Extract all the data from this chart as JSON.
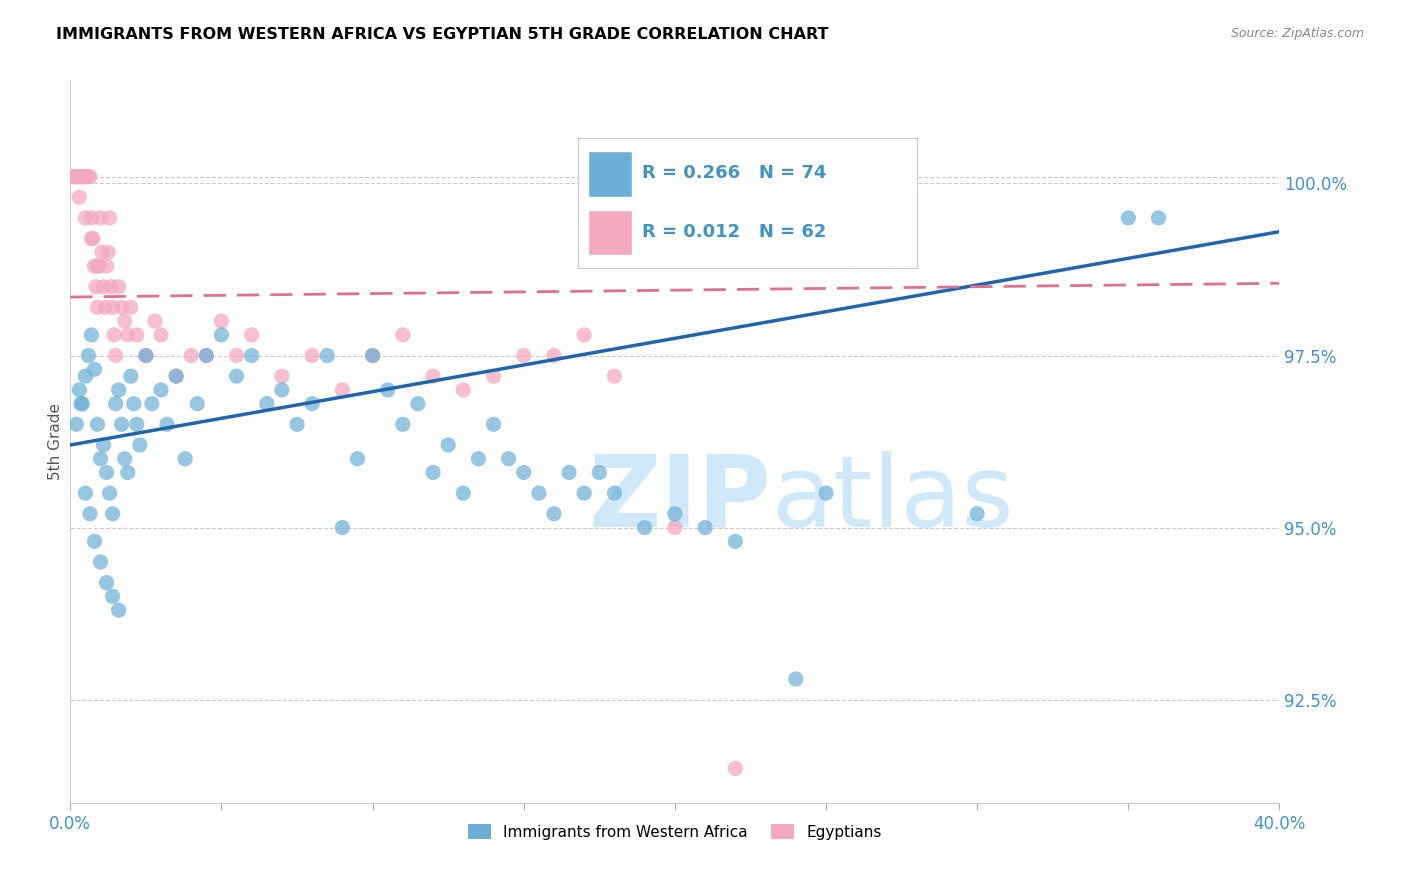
{
  "title": "IMMIGRANTS FROM WESTERN AFRICA VS EGYPTIAN 5TH GRADE CORRELATION CHART",
  "source": "Source: ZipAtlas.com",
  "ylabel": "5th Grade",
  "xlim": [
    0.0,
    40.0
  ],
  "ylim": [
    91.0,
    101.5
  ],
  "legend_blue_r": "R = 0.266",
  "legend_blue_n": "N = 74",
  "legend_pink_r": "R = 0.012",
  "legend_pink_n": "N = 62",
  "legend_label_blue": "Immigrants from Western Africa",
  "legend_label_pink": "Egyptians",
  "blue_color": "#6baed6",
  "pink_color": "#f4a9bf",
  "blue_line_color": "#2166ac",
  "pink_line_color": "#e07090",
  "title_color": "#000000",
  "source_color": "#888888",
  "axis_label_color": "#4393c3",
  "watermark_color": "#d0e8f8",
  "blue_scatter_x": [
    0.3,
    0.4,
    0.5,
    0.6,
    0.7,
    0.8,
    0.9,
    1.0,
    1.1,
    1.2,
    1.3,
    1.4,
    1.5,
    1.6,
    1.7,
    1.8,
    1.9,
    2.0,
    2.1,
    2.2,
    2.3,
    2.5,
    2.7,
    3.0,
    3.2,
    3.5,
    3.8,
    4.2,
    4.5,
    5.0,
    5.5,
    6.0,
    6.5,
    7.0,
    7.5,
    8.0,
    8.5,
    9.0,
    9.5,
    10.0,
    10.5,
    11.0,
    11.5,
    12.0,
    12.5,
    13.0,
    13.5,
    14.0,
    14.5,
    15.0,
    15.5,
    16.0,
    16.5,
    17.0,
    17.5,
    18.0,
    19.0,
    20.0,
    21.0,
    22.0,
    24.0,
    25.0,
    30.0,
    35.0,
    36.0,
    0.2,
    0.35,
    0.5,
    0.65,
    0.8,
    1.0,
    1.2,
    1.4,
    1.6
  ],
  "blue_scatter_y": [
    97.0,
    96.8,
    97.2,
    97.5,
    97.8,
    97.3,
    96.5,
    96.0,
    96.2,
    95.8,
    95.5,
    95.2,
    96.8,
    97.0,
    96.5,
    96.0,
    95.8,
    97.2,
    96.8,
    96.5,
    96.2,
    97.5,
    96.8,
    97.0,
    96.5,
    97.2,
    96.0,
    96.8,
    97.5,
    97.8,
    97.2,
    97.5,
    96.8,
    97.0,
    96.5,
    96.8,
    97.5,
    95.0,
    96.0,
    97.5,
    97.0,
    96.5,
    96.8,
    95.8,
    96.2,
    95.5,
    96.0,
    96.5,
    96.0,
    95.8,
    95.5,
    95.2,
    95.8,
    95.5,
    95.8,
    95.5,
    95.0,
    95.2,
    95.0,
    94.8,
    92.8,
    95.5,
    95.2,
    99.5,
    99.5,
    96.5,
    96.8,
    95.5,
    95.2,
    94.8,
    94.5,
    94.2,
    94.0,
    93.8
  ],
  "pink_scatter_x": [
    0.1,
    0.15,
    0.2,
    0.25,
    0.3,
    0.35,
    0.4,
    0.45,
    0.5,
    0.55,
    0.6,
    0.65,
    0.7,
    0.75,
    0.8,
    0.85,
    0.9,
    0.95,
    1.0,
    1.05,
    1.1,
    1.15,
    1.2,
    1.25,
    1.3,
    1.35,
    1.4,
    1.45,
    1.5,
    1.6,
    1.7,
    1.8,
    1.9,
    2.0,
    2.2,
    2.5,
    2.8,
    3.0,
    3.5,
    4.0,
    4.5,
    5.0,
    5.5,
    6.0,
    7.0,
    8.0,
    9.0,
    10.0,
    11.0,
    12.0,
    13.0,
    14.0,
    15.0,
    16.0,
    17.0,
    18.0,
    20.0,
    22.0,
    0.3,
    0.5,
    0.7,
    0.9
  ],
  "pink_scatter_y": [
    100.1,
    100.1,
    100.1,
    100.1,
    100.1,
    100.1,
    100.1,
    100.1,
    100.1,
    100.1,
    100.1,
    100.1,
    99.5,
    99.2,
    98.8,
    98.5,
    98.2,
    98.8,
    99.5,
    99.0,
    98.5,
    98.2,
    98.8,
    99.0,
    99.5,
    98.5,
    98.2,
    97.8,
    97.5,
    98.5,
    98.2,
    98.0,
    97.8,
    98.2,
    97.8,
    97.5,
    98.0,
    97.8,
    97.2,
    97.5,
    97.5,
    98.0,
    97.5,
    97.8,
    97.2,
    97.5,
    97.0,
    97.5,
    97.8,
    97.2,
    97.0,
    97.2,
    97.5,
    97.5,
    97.8,
    97.2,
    95.0,
    91.5,
    99.8,
    99.5,
    99.2,
    98.8
  ],
  "blue_line_x": [
    0.0,
    40.0
  ],
  "blue_line_y": [
    96.2,
    99.3
  ],
  "pink_line_x": [
    0.0,
    40.0
  ],
  "pink_line_y": [
    98.35,
    98.55
  ],
  "ytick_positions": [
    92.5,
    95.0,
    97.5,
    100.0
  ],
  "ytick_labels": [
    "92.5%",
    "95.0%",
    "97.5%",
    "100.0%"
  ],
  "xtick_positions": [
    0,
    5,
    10,
    15,
    20,
    25,
    30,
    35,
    40
  ],
  "xtick_labels": [
    "0.0%",
    "",
    "",
    "",
    "",
    "",
    "",
    "",
    "40.0%"
  ],
  "grid_color": "#cccccc",
  "background_color": "#ffffff"
}
